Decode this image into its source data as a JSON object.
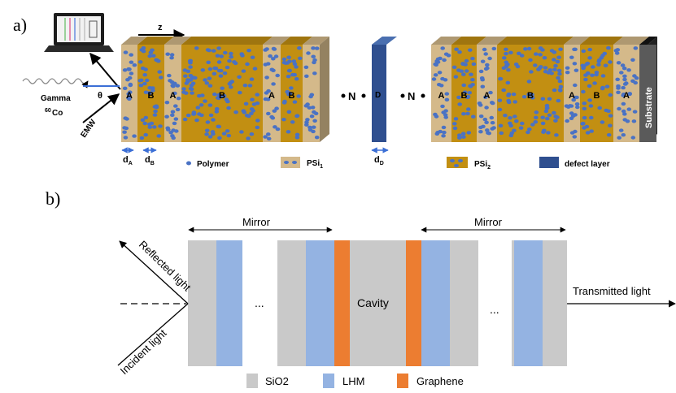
{
  "panel_a": {
    "label": "a)",
    "gamma": "Gamma",
    "source_sup": "60",
    "source": "Co",
    "theta": "θ",
    "emw": "EMW",
    "z": "z",
    "layer_a": "A",
    "layer_b": "B",
    "layer_d": "D",
    "n": "N",
    "substrate": "Substrate",
    "d_sym": "d",
    "sub_a": "A",
    "sub_b": "B",
    "sub_d": "D",
    "legend": {
      "polymer": "Polymer",
      "psi": "PSi",
      "psi1_sub": "1",
      "psi2_sub": "2",
      "defect": "defect layer"
    },
    "colors": {
      "psi1": "#d4b98a",
      "psi2": "#c28f12",
      "polymer_dot": "#4a72c4",
      "defect": "#2f4f8f",
      "substrate": "#5a5a5a"
    }
  },
  "panel_b": {
    "label": "b)",
    "mirror_left": "Mirror",
    "mirror_right": "Mirror",
    "cavity": "Cavity",
    "dots": "...",
    "reflected": "Reflected light",
    "incident": "Incident light",
    "transmitted": "Transmitted light",
    "legend": {
      "sio2": "SiO2",
      "lhm": "LHM",
      "graphene": "Graphene"
    },
    "colors": {
      "sio2": "#c9c9c9",
      "lhm": "#94b3e2",
      "graphene": "#ec7d31"
    }
  }
}
